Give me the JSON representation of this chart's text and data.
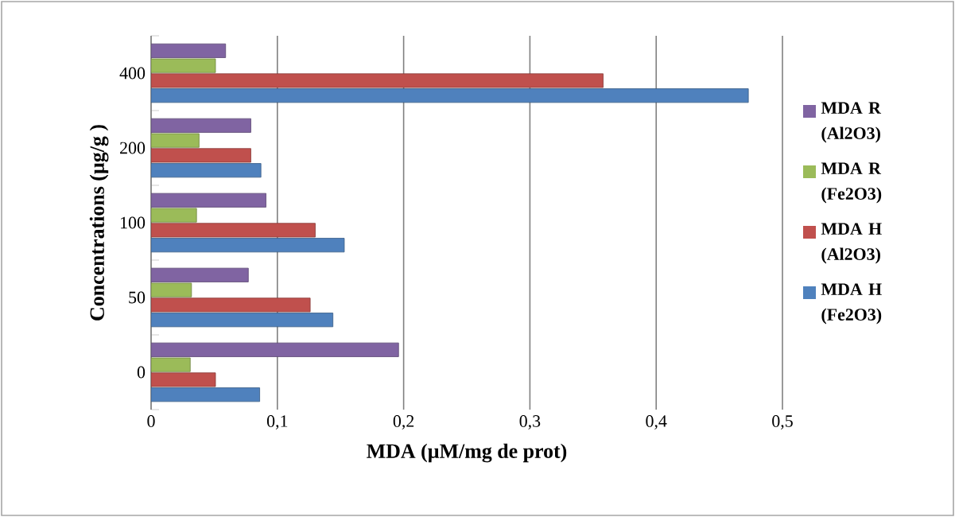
{
  "chart_data": {
    "type": "bar",
    "orientation": "horizontal",
    "categories": [
      "400",
      "200",
      "100",
      "50",
      "0"
    ],
    "xlabel": "MDA (µM/mg de prot)",
    "ylabel": "Concentrations (µg/g )",
    "xlim": [
      0,
      0.5
    ],
    "xticks": [
      0,
      {
        "value": 0.1,
        "label": "0,1"
      },
      {
        "value": 0.2,
        "label": "0,2"
      },
      {
        "value": 0.3,
        "label": "0,3"
      },
      {
        "value": 0.4,
        "label": "0,4"
      },
      {
        "value": 0.5,
        "label": "0,5"
      }
    ],
    "grid": "x",
    "legend": "right",
    "series": [
      {
        "name": "MDA H (Fe2O3)",
        "color": "#4f81bd",
        "values": [
          0.473,
          0.087,
          0.153,
          0.144,
          0.086
        ]
      },
      {
        "name": "MDA H (Al2O3)",
        "color": "#c0504d",
        "values": [
          0.358,
          0.079,
          0.13,
          0.126,
          0.051
        ]
      },
      {
        "name": "MDA R (Fe2O3)",
        "color": "#9bbb59",
        "values": [
          0.051,
          0.038,
          0.036,
          0.032,
          0.031
        ]
      },
      {
        "name": "MDA R (Al2O3)",
        "color": "#8064a2",
        "values": [
          0.059,
          0.079,
          0.091,
          0.077,
          0.196
        ]
      }
    ]
  }
}
